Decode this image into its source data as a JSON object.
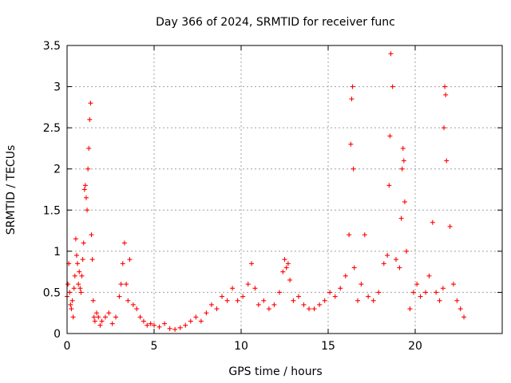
{
  "chart_data": {
    "type": "scatter",
    "title": "Day 366 of 2024, SRMTID for receiver func",
    "xlabel": "GPS time / hours",
    "ylabel": "SRMTID / TECUs",
    "xlim": [
      0,
      25
    ],
    "ylim": [
      0,
      3.5
    ],
    "grid": true,
    "marker": "+",
    "color": "#ff0000",
    "x_ticks": [
      {
        "value": 0,
        "label": "0"
      },
      {
        "value": 5,
        "label": "5"
      },
      {
        "value": 10,
        "label": "10"
      },
      {
        "value": 15,
        "label": "15"
      },
      {
        "value": 20,
        "label": "20"
      }
    ],
    "y_ticks": [
      {
        "value": 0,
        "label": "0"
      },
      {
        "value": 0.5,
        "label": "0.5"
      },
      {
        "value": 1,
        "label": "1"
      },
      {
        "value": 1.5,
        "label": "1.5"
      },
      {
        "value": 2,
        "label": "2"
      },
      {
        "value": 2.5,
        "label": "2.5"
      },
      {
        "value": 3,
        "label": "3"
      },
      {
        "value": 3.5,
        "label": "3.5"
      }
    ],
    "x": [
      0.0,
      0.05,
      0.1,
      0.15,
      0.2,
      0.25,
      0.3,
      0.35,
      0.4,
      0.45,
      0.5,
      0.55,
      0.6,
      0.65,
      0.7,
      0.75,
      0.8,
      0.85,
      0.9,
      0.95,
      1.0,
      1.05,
      1.1,
      1.15,
      1.2,
      1.25,
      1.3,
      1.35,
      1.4,
      1.45,
      1.5,
      1.55,
      1.6,
      1.7,
      1.8,
      1.9,
      2.0,
      2.2,
      2.4,
      2.6,
      2.8,
      3.0,
      3.1,
      3.2,
      3.3,
      3.4,
      3.5,
      3.6,
      3.8,
      4.0,
      4.2,
      4.4,
      4.6,
      4.8,
      5.0,
      5.3,
      5.6,
      5.9,
      6.2,
      6.5,
      6.8,
      7.1,
      7.4,
      7.7,
      8.0,
      8.3,
      8.6,
      8.9,
      9.2,
      9.5,
      9.8,
      10.1,
      10.4,
      10.6,
      10.8,
      11.0,
      11.3,
      11.6,
      11.9,
      12.2,
      12.4,
      12.5,
      12.6,
      12.7,
      12.8,
      13.0,
      13.3,
      13.6,
      13.9,
      14.2,
      14.5,
      14.8,
      15.1,
      15.4,
      15.7,
      16.0,
      16.2,
      16.3,
      16.35,
      16.4,
      16.45,
      16.5,
      16.7,
      16.9,
      17.1,
      17.3,
      17.6,
      17.9,
      18.2,
      18.4,
      18.5,
      18.55,
      18.6,
      18.7,
      18.9,
      19.1,
      19.2,
      19.25,
      19.3,
      19.35,
      19.4,
      19.5,
      19.7,
      19.9,
      20.1,
      20.3,
      20.6,
      20.8,
      21.0,
      21.2,
      21.4,
      21.6,
      21.65,
      21.7,
      21.75,
      21.8,
      22.0,
      22.2,
      22.4,
      22.6,
      22.8
    ],
    "y": [
      0.45,
      0.6,
      0.85,
      0.5,
      0.35,
      0.3,
      0.4,
      0.2,
      0.55,
      0.7,
      1.15,
      0.95,
      0.85,
      0.6,
      0.75,
      0.55,
      0.5,
      0.7,
      0.9,
      1.1,
      1.75,
      1.8,
      1.65,
      1.5,
      2.0,
      2.25,
      2.6,
      2.8,
      1.2,
      0.9,
      0.4,
      0.2,
      0.15,
      0.25,
      0.2,
      0.1,
      0.15,
      0.2,
      0.25,
      0.12,
      0.2,
      0.45,
      0.6,
      0.85,
      1.1,
      0.6,
      0.4,
      0.9,
      0.35,
      0.3,
      0.2,
      0.15,
      0.1,
      0.12,
      0.1,
      0.08,
      0.12,
      0.06,
      0.05,
      0.07,
      0.1,
      0.15,
      0.2,
      0.15,
      0.25,
      0.35,
      0.3,
      0.45,
      0.4,
      0.55,
      0.4,
      0.45,
      0.6,
      0.85,
      0.55,
      0.35,
      0.4,
      0.3,
      0.35,
      0.5,
      0.75,
      0.9,
      0.8,
      0.85,
      0.65,
      0.4,
      0.45,
      0.35,
      0.3,
      0.3,
      0.35,
      0.4,
      0.5,
      0.45,
      0.55,
      0.7,
      1.2,
      2.3,
      2.85,
      3.0,
      2.0,
      0.8,
      0.4,
      0.6,
      1.2,
      0.45,
      0.4,
      0.5,
      0.85,
      0.95,
      1.8,
      2.4,
      3.4,
      3.0,
      0.9,
      0.8,
      1.4,
      2.0,
      2.25,
      2.1,
      1.6,
      1.0,
      0.3,
      0.5,
      0.6,
      0.45,
      0.5,
      0.7,
      1.35,
      0.5,
      0.4,
      0.55,
      2.5,
      3.0,
      2.9,
      2.1,
      1.3,
      0.6,
      0.4,
      0.3,
      0.2
    ]
  }
}
